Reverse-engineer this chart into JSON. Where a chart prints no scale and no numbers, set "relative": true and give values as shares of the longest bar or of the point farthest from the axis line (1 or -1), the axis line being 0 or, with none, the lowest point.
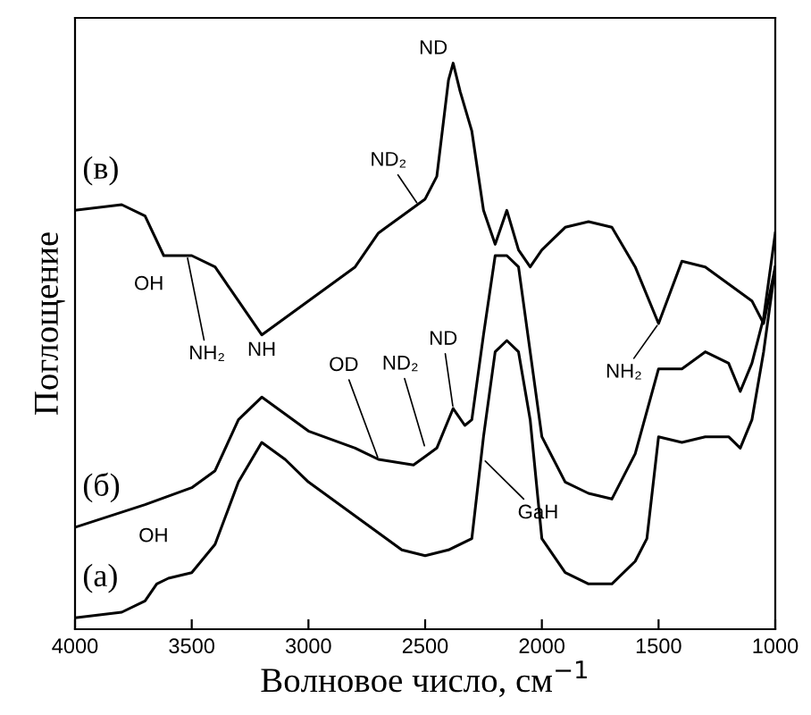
{
  "chart_data": {
    "type": "line",
    "relative": true,
    "xlabel": "Волновое число, см$^{−1}$",
    "ylabel": "Поглощение",
    "xlim": [
      4000,
      1000
    ],
    "xticks": [
      4000,
      3500,
      3000,
      2500,
      2000,
      1500,
      1000
    ],
    "grid": false,
    "legend": false,
    "series": [
      {
        "name": "(в)",
        "color": "#000000",
        "x": [
          4000,
          3800,
          3700,
          3620,
          3500,
          3400,
          3300,
          3200,
          3000,
          2800,
          2700,
          2600,
          2500,
          2450,
          2400,
          2380,
          2350,
          2300,
          2250,
          2200,
          2150,
          2100,
          2050,
          2000,
          1900,
          1800,
          1700,
          1600,
          1500,
          1400,
          1300,
          1200,
          1100,
          1050,
          1000
        ],
        "values": [
          0.74,
          0.75,
          0.73,
          0.66,
          0.66,
          0.64,
          0.58,
          0.52,
          0.58,
          0.64,
          0.7,
          0.73,
          0.76,
          0.8,
          0.97,
          1.0,
          0.95,
          0.88,
          0.74,
          0.68,
          0.74,
          0.67,
          0.64,
          0.67,
          0.71,
          0.72,
          0.71,
          0.64,
          0.54,
          0.65,
          0.64,
          0.61,
          0.58,
          0.54,
          0.64
        ]
      },
      {
        "name": "(б)",
        "color": "#000000",
        "x": [
          4000,
          3700,
          3500,
          3400,
          3300,
          3200,
          3100,
          3000,
          2800,
          2700,
          2550,
          2450,
          2380,
          2330,
          2300,
          2250,
          2200,
          2150,
          2100,
          2050,
          2000,
          1900,
          1800,
          1700,
          1600,
          1500,
          1400,
          1300,
          1200,
          1150,
          1100,
          1050,
          1000
        ],
        "values": [
          0.18,
          0.22,
          0.25,
          0.28,
          0.37,
          0.41,
          0.38,
          0.35,
          0.32,
          0.3,
          0.29,
          0.32,
          0.39,
          0.36,
          0.37,
          0.52,
          0.66,
          0.66,
          0.64,
          0.49,
          0.34,
          0.26,
          0.24,
          0.23,
          0.31,
          0.46,
          0.46,
          0.49,
          0.47,
          0.42,
          0.47,
          0.55,
          0.7
        ]
      },
      {
        "name": "(а)",
        "color": "#000000",
        "x": [
          4000,
          3800,
          3700,
          3650,
          3600,
          3500,
          3400,
          3300,
          3200,
          3100,
          3000,
          2800,
          2600,
          2500,
          2400,
          2300,
          2250,
          2200,
          2150,
          2100,
          2050,
          2000,
          1900,
          1800,
          1700,
          1600,
          1550,
          1500,
          1400,
          1300,
          1200,
          1150,
          1100,
          1050,
          1000
        ],
        "values": [
          0.02,
          0.03,
          0.05,
          0.08,
          0.09,
          0.1,
          0.15,
          0.26,
          0.33,
          0.3,
          0.26,
          0.2,
          0.14,
          0.13,
          0.14,
          0.16,
          0.34,
          0.49,
          0.51,
          0.49,
          0.37,
          0.16,
          0.1,
          0.08,
          0.08,
          0.12,
          0.16,
          0.34,
          0.33,
          0.34,
          0.34,
          0.32,
          0.37,
          0.49,
          0.64
        ]
      }
    ],
    "annotations": [
      {
        "text": "ND",
        "x": 2380,
        "y": 1.0
      },
      {
        "text": "ND₂",
        "x": 2530,
        "y": 0.75
      },
      {
        "text": "OH",
        "x": 3620,
        "y": 0.66
      },
      {
        "text": "NH₂",
        "x": 3520,
        "y": 0.66
      },
      {
        "text": "NH₂",
        "x": 1500,
        "y": 0.54
      },
      {
        "text": "NH",
        "x": 3200,
        "y": 0.41
      },
      {
        "text": "OD",
        "x": 2700,
        "y": 0.3
      },
      {
        "text": "ND₂",
        "x": 2500,
        "y": 0.32
      },
      {
        "text": "ND",
        "x": 2380,
        "y": 0.39
      },
      {
        "text": "GaH",
        "x": 2250,
        "y": 0.3
      },
      {
        "text": "OH",
        "x": 3600,
        "y": 0.09
      }
    ]
  }
}
